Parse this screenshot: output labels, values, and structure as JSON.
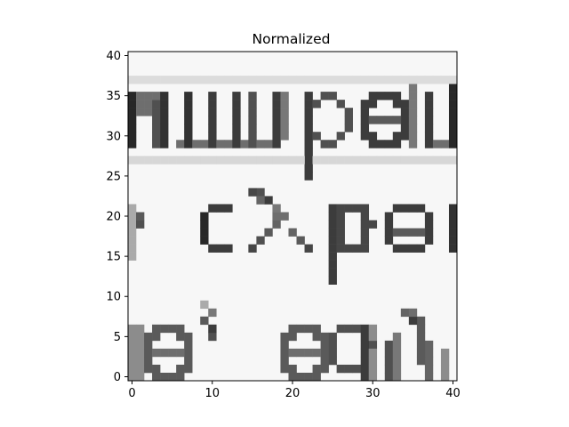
{
  "chart_data": {
    "type": "heatmap",
    "title": "Normalized",
    "xlabel": "",
    "ylabel": "",
    "colormap": "gray",
    "xlim": [
      -0.5,
      40.5
    ],
    "ylim": [
      40.5,
      -0.5
    ],
    "x_ticks": [
      0,
      10,
      20,
      30,
      40
    ],
    "y_ticks": [
      0,
      5,
      10,
      15,
      20,
      25,
      30,
      35,
      40
    ],
    "grid": false,
    "grid_size": [
      41,
      41
    ],
    "image_content": {
      "description": "grayscale crop of scanned text",
      "text_lines": [
        "s, say",
        "cybe",
        "umber"
      ]
    },
    "highlight_box": {
      "x": [
        15,
        24
      ],
      "y": [
        15,
        24
      ],
      "color": "#ff0000"
    }
  }
}
